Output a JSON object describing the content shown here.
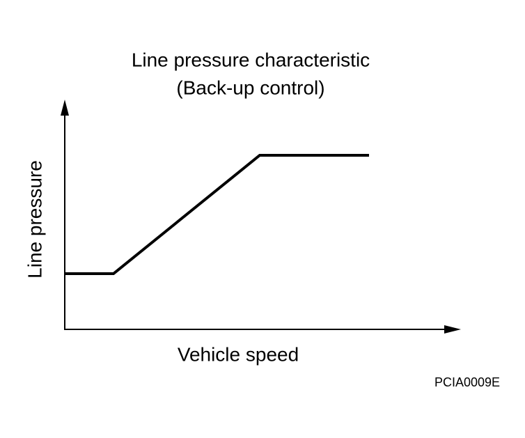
{
  "title": {
    "line1": "Line pressure characteristic",
    "line2": "(Back-up control)"
  },
  "axes": {
    "y_label": "Line pressure",
    "x_label": "Vehicle speed"
  },
  "figure_code": "PCIA0009E"
}
